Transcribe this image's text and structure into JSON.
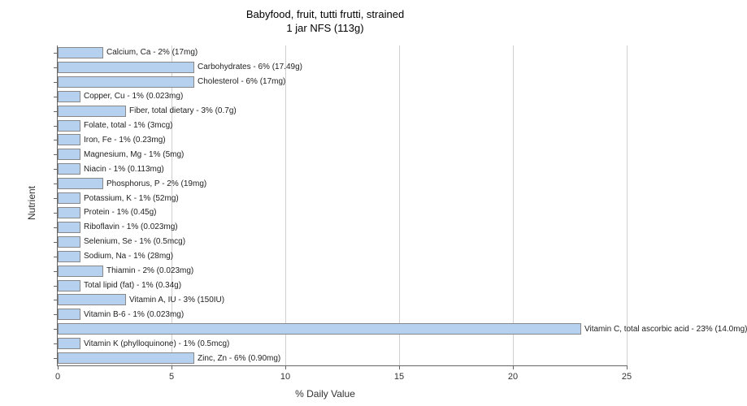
{
  "title_line1": "Babyfood, fruit, tutti frutti, strained",
  "title_line2": "1 jar NFS (113g)",
  "y_axis_label": "Nutrient",
  "x_axis_label": "% Daily Value",
  "xlim": [
    0,
    25
  ],
  "xtick_step": 5,
  "bar_color": "#b6d0ef",
  "bar_border": "#888888",
  "grid_color": "#d0d0d0",
  "background_color": "#ffffff",
  "title_fontsize": 13,
  "label_fontsize": 12,
  "tick_fontsize": 11,
  "bar_label_fontsize": 10,
  "xticks": [
    0,
    5,
    10,
    15,
    20,
    25
  ],
  "nutrients": [
    {
      "label": "Calcium, Ca - 2% (17mg)",
      "value": 2
    },
    {
      "label": "Carbohydrates - 6% (17.49g)",
      "value": 6
    },
    {
      "label": "Cholesterol - 6% (17mg)",
      "value": 6
    },
    {
      "label": "Copper, Cu - 1% (0.023mg)",
      "value": 1
    },
    {
      "label": "Fiber, total dietary - 3% (0.7g)",
      "value": 3
    },
    {
      "label": "Folate, total - 1% (3mcg)",
      "value": 1
    },
    {
      "label": "Iron, Fe - 1% (0.23mg)",
      "value": 1
    },
    {
      "label": "Magnesium, Mg - 1% (5mg)",
      "value": 1
    },
    {
      "label": "Niacin - 1% (0.113mg)",
      "value": 1
    },
    {
      "label": "Phosphorus, P - 2% (19mg)",
      "value": 2
    },
    {
      "label": "Potassium, K - 1% (52mg)",
      "value": 1
    },
    {
      "label": "Protein - 1% (0.45g)",
      "value": 1
    },
    {
      "label": "Riboflavin - 1% (0.023mg)",
      "value": 1
    },
    {
      "label": "Selenium, Se - 1% (0.5mcg)",
      "value": 1
    },
    {
      "label": "Sodium, Na - 1% (28mg)",
      "value": 1
    },
    {
      "label": "Thiamin - 2% (0.023mg)",
      "value": 2
    },
    {
      "label": "Total lipid (fat) - 1% (0.34g)",
      "value": 1
    },
    {
      "label": "Vitamin A, IU - 3% (150IU)",
      "value": 3
    },
    {
      "label": "Vitamin B-6 - 1% (0.023mg)",
      "value": 1
    },
    {
      "label": "Vitamin C, total ascorbic acid - 23% (14.0mg)",
      "value": 23
    },
    {
      "label": "Vitamin K (phylloquinone) - 1% (0.5mcg)",
      "value": 1
    },
    {
      "label": "Zinc, Zn - 6% (0.90mg)",
      "value": 6
    }
  ]
}
